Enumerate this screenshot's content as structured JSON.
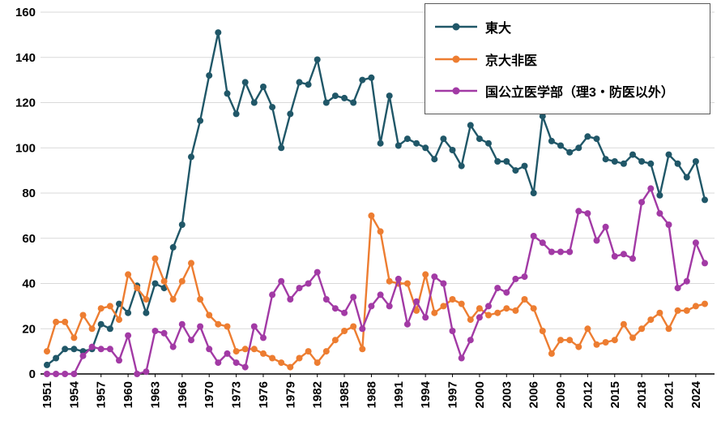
{
  "chart_data": {
    "type": "line",
    "title": "",
    "xlabel": "",
    "ylabel": "",
    "ylim": [
      0,
      160
    ],
    "yticks": [
      0,
      20,
      40,
      60,
      80,
      100,
      120,
      140,
      160
    ],
    "grid": "horizontal",
    "legend_position": "top-right",
    "x": [
      1951,
      1952,
      1953,
      1954,
      1955,
      1956,
      1957,
      1958,
      1959,
      1960,
      1961,
      1962,
      1963,
      1964,
      1965,
      1966,
      1967,
      1968,
      1970,
      1971,
      1972,
      1973,
      1974,
      1975,
      1976,
      1977,
      1978,
      1979,
      1980,
      1981,
      1982,
      1983,
      1984,
      1985,
      1986,
      1987,
      1988,
      1989,
      1990,
      1991,
      1992,
      1993,
      1994,
      1995,
      1996,
      1997,
      1998,
      1999,
      2000,
      2001,
      2002,
      2003,
      2004,
      2005,
      2006,
      2007,
      2008,
      2009,
      2010,
      2011,
      2012,
      2013,
      2014,
      2015,
      2016,
      2017,
      2018,
      2019,
      2020,
      2021,
      2022,
      2023,
      2024,
      2025
    ],
    "x_tick_labels": [
      "1951",
      "1954",
      "1957",
      "1960",
      "1963",
      "1966",
      "1970",
      "1973",
      "1976",
      "1979",
      "1982",
      "1985",
      "1988",
      "1991",
      "1994",
      "1997",
      "2000",
      "2003",
      "2006",
      "2009",
      "2012",
      "2015",
      "2018",
      "2021",
      "2024"
    ],
    "series": [
      {
        "name": "東大",
        "color": "#205768",
        "values": [
          4,
          7,
          11,
          11,
          10,
          11,
          22,
          20,
          31,
          27,
          39,
          27,
          40,
          38,
          56,
          66,
          96,
          112,
          132,
          151,
          124,
          115,
          129,
          120,
          127,
          118,
          100,
          115,
          129,
          128,
          139,
          120,
          123,
          122,
          120,
          130,
          131,
          102,
          123,
          101,
          104,
          102,
          100,
          95,
          104,
          99,
          92,
          110,
          104,
          102,
          94,
          94,
          90,
          92,
          80,
          114,
          103,
          101,
          98,
          100,
          105,
          104,
          95,
          94,
          93,
          97,
          94,
          93,
          79,
          97,
          93,
          87,
          94,
          77
        ]
      },
      {
        "name": "京大非医",
        "color": "#ED7D31",
        "values": [
          10,
          23,
          23,
          16,
          26,
          20,
          29,
          30,
          24,
          44,
          38,
          33,
          51,
          41,
          33,
          41,
          49,
          33,
          26,
          22,
          21,
          10,
          11,
          11,
          9,
          7,
          5,
          3,
          7,
          10,
          5,
          10,
          15,
          19,
          21,
          11,
          70,
          63,
          41,
          40,
          40,
          28,
          44,
          27,
          30,
          33,
          31,
          24,
          29,
          26,
          27,
          29,
          28,
          33,
          29,
          19,
          9,
          15,
          15,
          12,
          20,
          13,
          14,
          15,
          22,
          16,
          20,
          24,
          27,
          20,
          28,
          28,
          30,
          31
        ]
      },
      {
        "name": "国公立医学部（理3・防医以外）",
        "color": "#A23AA5",
        "values": [
          0,
          0,
          0,
          0,
          8,
          12,
          11,
          11,
          6,
          17,
          0,
          1,
          19,
          18,
          12,
          22,
          15,
          21,
          11,
          5,
          9,
          5,
          3,
          21,
          16,
          35,
          41,
          33,
          38,
          40,
          45,
          33,
          29,
          27,
          34,
          20,
          30,
          35,
          30,
          42,
          22,
          32,
          25,
          43,
          40,
          19,
          7,
          15,
          25,
          30,
          38,
          36,
          42,
          43,
          61,
          58,
          54,
          54,
          54,
          72,
          71,
          59,
          65,
          52,
          53,
          51,
          76,
          82,
          71,
          66,
          38,
          41,
          58,
          49
        ]
      }
    ]
  }
}
